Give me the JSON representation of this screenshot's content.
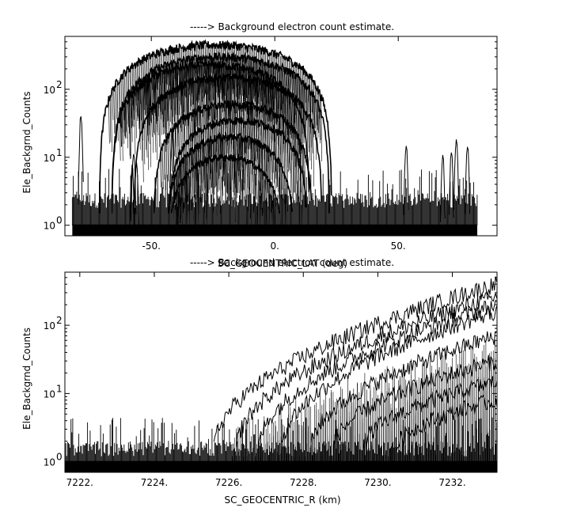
{
  "chart_data": [
    {
      "type": "line",
      "title": "-----> Background electron count estimate.",
      "xlabel": "SC_GEOCENTRIC_LAT (deg)",
      "ylabel": "Ele_Backgrnd_Counts",
      "yscale": "log",
      "xlim": [
        -85,
        90
      ],
      "ylim": [
        0.7,
        600
      ],
      "x_ticks": [
        {
          "value": -50,
          "label": "-50."
        },
        {
          "value": 0,
          "label": "0."
        },
        {
          "value": 50,
          "label": "50."
        }
      ],
      "y_ticks": [
        {
          "value": 1,
          "label": "10",
          "exp": "0"
        },
        {
          "value": 10,
          "label": "10",
          "exp": "1"
        },
        {
          "value": 100,
          "label": "10",
          "exp": "2"
        }
      ],
      "noise_floor": {
        "x_range": [
          -82,
          82
        ],
        "range": [
          1,
          3
        ]
      },
      "spikes": [
        {
          "x": -78.5,
          "peak": 48
        },
        {
          "x": -57.2,
          "peak": 15
        },
        {
          "x": -57.8,
          "peak": 9
        },
        {
          "x": -56.0,
          "peak": 11
        },
        {
          "x": -41.5,
          "peak": 24
        },
        {
          "x": 53.2,
          "peak": 17
        },
        {
          "x": 68.0,
          "peak": 13
        },
        {
          "x": 71.5,
          "peak": 14
        },
        {
          "x": 73.5,
          "peak": 22
        },
        {
          "x": 78.0,
          "peak": 17
        }
      ],
      "series": [
        {
          "center": -24,
          "peak": 450,
          "halfwidth": 47,
          "edge": 1.5
        },
        {
          "center": -22,
          "peak": 300,
          "halfwidth": 44,
          "edge": 1.5
        },
        {
          "center": -26,
          "peak": 230,
          "halfwidth": 40,
          "edge": 1.5
        },
        {
          "center": -19,
          "peak": 150,
          "halfwidth": 38,
          "edge": 1.5
        },
        {
          "center": -17,
          "peak": 60,
          "halfwidth": 32,
          "edge": 1.5
        },
        {
          "center": -15,
          "peak": 35,
          "halfwidth": 28,
          "edge": 1.5
        },
        {
          "center": -18,
          "peak": 20,
          "halfwidth": 25,
          "edge": 1.5
        },
        {
          "center": -20,
          "peak": 10,
          "halfwidth": 22,
          "edge": 1.5
        }
      ]
    },
    {
      "type": "line",
      "title": "-----> Background electron count estimate.",
      "xlabel": "SC_GEOCENTRIC_R (km)",
      "ylabel": "Ele_Backgrnd_Counts",
      "yscale": "log",
      "xlim": [
        7221.6,
        7233.2
      ],
      "ylim": [
        0.7,
        600
      ],
      "x_ticks": [
        {
          "value": 7222,
          "label": "7222."
        },
        {
          "value": 7224,
          "label": "7224."
        },
        {
          "value": 7226,
          "label": "7226."
        },
        {
          "value": 7228,
          "label": "7228."
        },
        {
          "value": 7230,
          "label": "7230."
        },
        {
          "value": 7232,
          "label": "7232."
        }
      ],
      "y_ticks": [
        {
          "value": 1,
          "label": "10",
          "exp": "0"
        },
        {
          "value": 10,
          "label": "10",
          "exp": "1"
        },
        {
          "value": 100,
          "label": "10",
          "exp": "2"
        }
      ],
      "noise_floor": {
        "x_range": [
          7221.6,
          7233.2
        ],
        "range": [
          0.8,
          2
        ]
      },
      "series": [
        {
          "start": 7225.6,
          "end_value": 400
        },
        {
          "start": 7226.2,
          "end_value": 260
        },
        {
          "start": 7226.8,
          "end_value": 200
        },
        {
          "start": 7227.4,
          "end_value": 160
        },
        {
          "start": 7228.2,
          "end_value": 70
        },
        {
          "start": 7228.8,
          "end_value": 30
        },
        {
          "start": 7229.6,
          "end_value": 15
        },
        {
          "start": 7230.5,
          "end_value": 8
        }
      ]
    }
  ]
}
